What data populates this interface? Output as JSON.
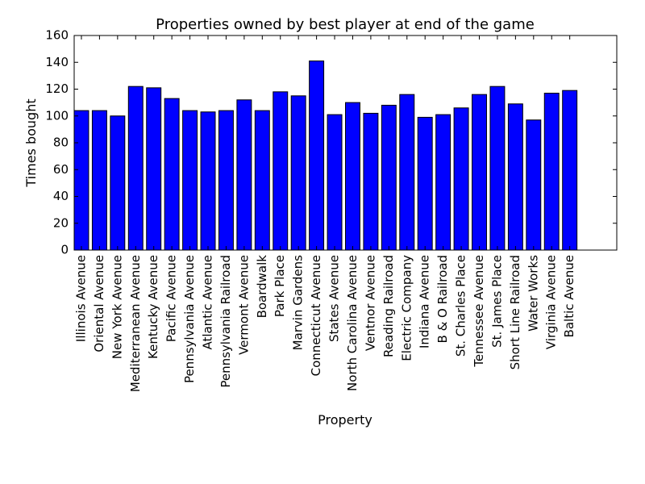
{
  "chart_data": {
    "type": "bar",
    "title": "Properties owned by best player at end of the game",
    "xlabel": "Property",
    "ylabel": "Times bought",
    "ylim": [
      0,
      160
    ],
    "yticks": [
      0,
      20,
      40,
      60,
      80,
      100,
      120,
      140,
      160
    ],
    "xlim": [
      0,
      30
    ],
    "grid": false,
    "bar_color": "#0000ff",
    "categories": [
      "Illinois Avenue",
      "Oriental Avenue",
      "New York Avenue",
      "Mediterranean Avenue",
      "Kentucky Avenue",
      "Pacific Avenue",
      "Pennsylvania Avenue",
      "Atlantic Avenue",
      "Pennsylvania Railroad",
      "Vermont Avenue",
      "Boardwalk",
      "Park Place",
      "Marvin Gardens",
      "Connecticut Avenue",
      "States Avenue",
      "North Carolina Avenue",
      "Ventnor Avenue",
      "Reading Railroad",
      "Electric Company",
      "Indiana Avenue",
      "B & O Railroad",
      "St. Charles Place",
      "Tennessee Avenue",
      "St. James Place",
      "Short Line Railroad",
      "Water Works",
      "Virginia Avenue",
      "Baltic Avenue"
    ],
    "values": [
      104,
      104,
      100,
      122,
      121,
      113,
      104,
      103,
      104,
      112,
      104,
      118,
      115,
      141,
      101,
      110,
      102,
      108,
      116,
      99,
      101,
      106,
      116,
      122,
      109,
      97,
      117,
      119
    ]
  }
}
